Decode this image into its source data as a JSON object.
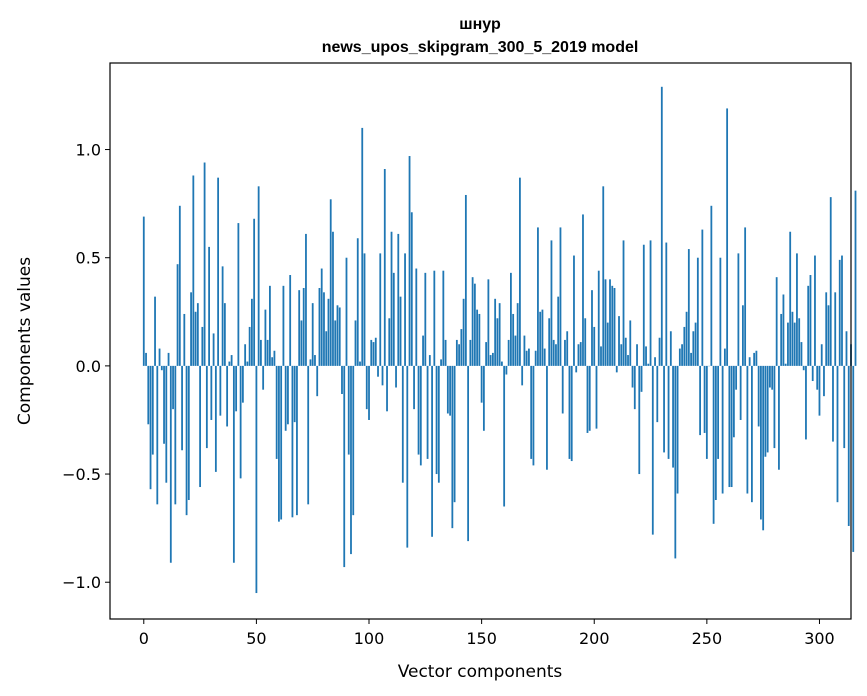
{
  "chart_data": {
    "type": "bar",
    "title_line1": "шнур",
    "title_line2": "news_upos_skipgram_300_5_2019 model",
    "xlabel": "Vector components",
    "ylabel": "Components values",
    "xlim": [
      -15,
      314
    ],
    "ylim": [
      -1.17,
      1.4
    ],
    "xticks": [
      0,
      50,
      100,
      150,
      200,
      250,
      300
    ],
    "yticks": [
      -1.0,
      -0.5,
      0.0,
      0.5,
      1.0
    ],
    "ytick_labels": [
      "−1.0",
      "−0.5",
      "0.0",
      "0.5",
      "1.0"
    ],
    "grid": false,
    "bar_color": "#1f77b4",
    "values": [
      0.69,
      0.06,
      -0.27,
      -0.57,
      -0.41,
      0.32,
      -0.64,
      0.08,
      -0.02,
      -0.36,
      -0.54,
      0.06,
      -0.91,
      -0.2,
      -0.64,
      0.47,
      0.74,
      -0.39,
      0.24,
      -0.69,
      -0.62,
      0.34,
      0.88,
      0.25,
      0.29,
      -0.56,
      0.18,
      0.94,
      -0.38,
      0.55,
      -0.25,
      0.15,
      -0.49,
      0.87,
      -0.23,
      0.46,
      0.29,
      -0.28,
      0.02,
      0.05,
      -0.91,
      -0.21,
      0.66,
      -0.52,
      -0.17,
      0.1,
      0.02,
      0.18,
      0.31,
      0.68,
      -1.05,
      0.83,
      0.12,
      -0.11,
      0.26,
      0.12,
      0.37,
      0.04,
      0.07,
      -0.43,
      -0.72,
      -0.71,
      0.37,
      -0.3,
      -0.27,
      0.42,
      -0.7,
      -0.26,
      -0.69,
      0.35,
      0.21,
      0.36,
      0.61,
      -0.64,
      0.03,
      0.29,
      0.05,
      -0.14,
      0.36,
      0.45,
      0.34,
      0.16,
      0.31,
      0.77,
      0.62,
      0.21,
      0.28,
      0.27,
      -0.13,
      -0.93,
      0.5,
      -0.41,
      -0.87,
      -0.69,
      0.21,
      0.59,
      0.02,
      1.1,
      0.52,
      -0.2,
      -0.25,
      0.12,
      0.11,
      0.13,
      -0.05,
      0.52,
      -0.09,
      0.91,
      -0.21,
      0.22,
      0.62,
      0.43,
      -0.1,
      0.61,
      0.32,
      -0.54,
      0.52,
      -0.84,
      0.97,
      0.71,
      -0.2,
      0.45,
      -0.41,
      -0.46,
      0.14,
      0.43,
      -0.43,
      0.05,
      -0.79,
      0.44,
      -0.5,
      -0.54,
      0.03,
      0.44,
      0.12,
      -0.22,
      -0.23,
      -0.75,
      -0.63,
      0.12,
      0.1,
      0.17,
      0.31,
      0.79,
      -0.81,
      0.12,
      0.41,
      0.38,
      0.26,
      0.24,
      -0.17,
      -0.3,
      0.11,
      0.4,
      0.05,
      0.06,
      0.31,
      0.22,
      0.29,
      0.02,
      -0.65,
      -0.04,
      0.12,
      0.43,
      0.24,
      0.14,
      0.29,
      0.87,
      -0.09,
      0.14,
      0.07,
      0.08,
      -0.43,
      -0.46,
      0.07,
      0.64,
      0.25,
      0.26,
      0.08,
      -0.48,
      0.22,
      0.58,
      0.12,
      0.1,
      0.32,
      0.64,
      -0.22,
      0.12,
      0.16,
      -0.43,
      -0.44,
      0.51,
      -0.03,
      0.1,
      0.11,
      0.7,
      0.22,
      -0.31,
      -0.3,
      0.35,
      0.18,
      -0.29,
      0.44,
      0.09,
      0.83,
      0.4,
      0.2,
      0.4,
      0.37,
      0.36,
      -0.03,
      0.23,
      0.1,
      0.58,
      0.13,
      0.05,
      0.21,
      -0.1,
      -0.2,
      0.1,
      -0.5,
      -0.12,
      0.56,
      0.09,
      0.01,
      0.58,
      -0.78,
      0.04,
      -0.26,
      0.13,
      1.29,
      -0.4,
      0.57,
      -0.43,
      0.16,
      -0.47,
      -0.89,
      -0.59,
      0.08,
      0.1,
      0.18,
      0.25,
      0.54,
      0.06,
      0.16,
      0.2,
      0.5,
      -0.32,
      0.63,
      -0.31,
      -0.43,
      0.0,
      0.74,
      -0.73,
      -0.62,
      -0.43,
      0.5,
      -0.59,
      0.08,
      1.19,
      -0.56,
      -0.56,
      -0.33,
      -0.11,
      0.52,
      -0.25,
      0.28,
      0.64,
      -0.59,
      0.04,
      -0.63,
      0.06,
      0.07,
      -0.28,
      -0.71,
      -0.76,
      -0.42,
      -0.4,
      -0.1,
      -0.11,
      -0.38,
      0.41,
      -0.48,
      0.24,
      0.33,
      0.01,
      0.2,
      0.62,
      0.25,
      0.2,
      0.52,
      0.22,
      0.11,
      -0.02,
      -0.34,
      0.37,
      0.42,
      -0.07,
      0.51,
      -0.11,
      -0.23,
      0.1,
      -0.14,
      0.34,
      0.28,
      0.78,
      -0.35,
      0.34,
      -0.63,
      0.49,
      0.51,
      -0.38,
      0.16,
      -0.74,
      0.1,
      -0.86,
      0.81
    ]
  }
}
